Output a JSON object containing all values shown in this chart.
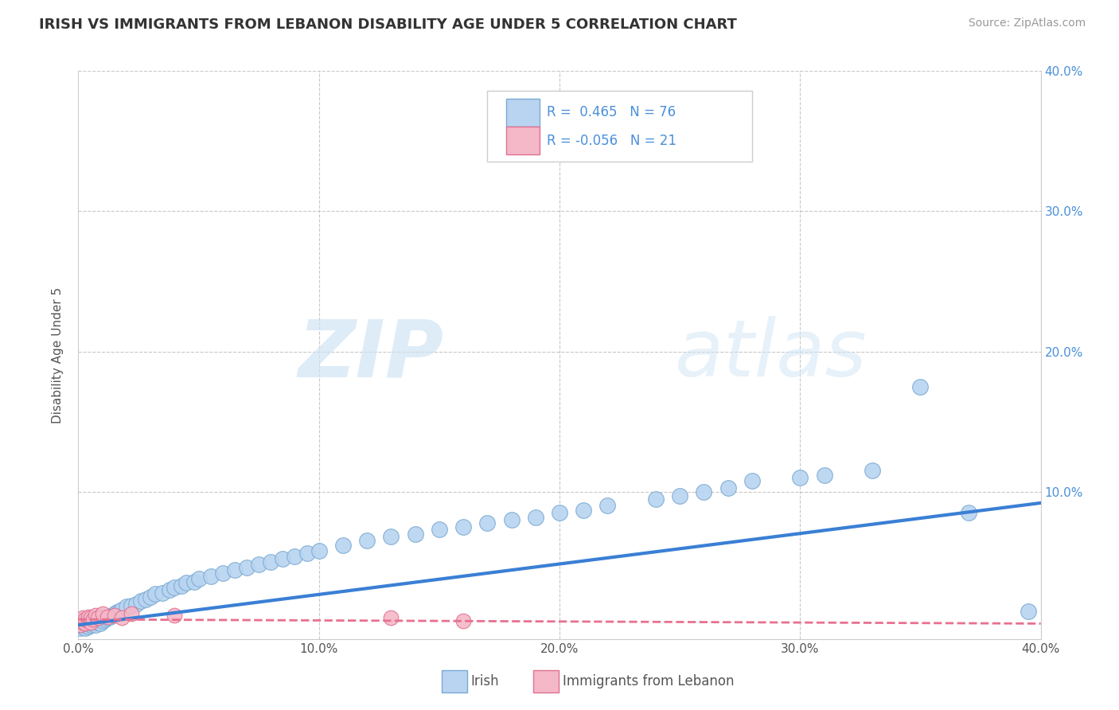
{
  "title": "IRISH VS IMMIGRANTS FROM LEBANON DISABILITY AGE UNDER 5 CORRELATION CHART",
  "source": "Source: ZipAtlas.com",
  "ylabel": "Disability Age Under 5",
  "xlim": [
    0.0,
    0.4
  ],
  "ylim": [
    -0.005,
    0.4
  ],
  "xticks": [
    0.0,
    0.1,
    0.2,
    0.3,
    0.4
  ],
  "yticks": [
    0.0,
    0.1,
    0.2,
    0.3,
    0.4
  ],
  "xtick_labels": [
    "0.0%",
    "10.0%",
    "20.0%",
    "30.0%",
    "40.0%"
  ],
  "ytick_labels": [
    "",
    "10.0%",
    "20.0%",
    "30.0%",
    "40.0%"
  ],
  "background_color": "#ffffff",
  "grid_color": "#c8c8c8",
  "irish_color": "#b8d4f0",
  "irish_edge_color": "#7aaad4",
  "lebanon_color": "#f4b8c8",
  "lebanon_edge_color": "#e07090",
  "irish_line_color": "#3a7fd5",
  "lebanon_line_color": "#e87090",
  "r_irish": 0.465,
  "n_irish": 76,
  "r_lebanon": -0.056,
  "n_lebanon": 21,
  "irish_x": [
    0.001,
    0.001,
    0.002,
    0.002,
    0.003,
    0.003,
    0.003,
    0.004,
    0.004,
    0.005,
    0.005,
    0.006,
    0.006,
    0.007,
    0.007,
    0.008,
    0.008,
    0.009,
    0.009,
    0.01,
    0.01,
    0.011,
    0.012,
    0.013,
    0.014,
    0.015,
    0.016,
    0.017,
    0.018,
    0.02,
    0.022,
    0.024,
    0.026,
    0.028,
    0.03,
    0.032,
    0.035,
    0.038,
    0.04,
    0.043,
    0.045,
    0.048,
    0.05,
    0.055,
    0.06,
    0.065,
    0.07,
    0.075,
    0.08,
    0.085,
    0.09,
    0.095,
    0.1,
    0.11,
    0.12,
    0.13,
    0.14,
    0.15,
    0.16,
    0.17,
    0.18,
    0.19,
    0.2,
    0.21,
    0.22,
    0.24,
    0.25,
    0.26,
    0.27,
    0.28,
    0.3,
    0.31,
    0.33,
    0.35,
    0.37,
    0.395
  ],
  "irish_y": [
    0.003,
    0.005,
    0.004,
    0.007,
    0.003,
    0.005,
    0.008,
    0.004,
    0.006,
    0.005,
    0.007,
    0.006,
    0.009,
    0.005,
    0.008,
    0.007,
    0.01,
    0.006,
    0.009,
    0.008,
    0.011,
    0.009,
    0.01,
    0.011,
    0.012,
    0.013,
    0.014,
    0.015,
    0.016,
    0.018,
    0.019,
    0.02,
    0.022,
    0.023,
    0.025,
    0.027,
    0.028,
    0.03,
    0.032,
    0.033,
    0.035,
    0.036,
    0.038,
    0.04,
    0.042,
    0.044,
    0.046,
    0.048,
    0.05,
    0.052,
    0.054,
    0.056,
    0.058,
    0.062,
    0.065,
    0.068,
    0.07,
    0.073,
    0.075,
    0.078,
    0.08,
    0.082,
    0.085,
    0.087,
    0.09,
    0.095,
    0.097,
    0.1,
    0.103,
    0.108,
    0.11,
    0.112,
    0.115,
    0.175,
    0.085,
    0.015
  ],
  "lebanon_x": [
    0.001,
    0.001,
    0.002,
    0.002,
    0.003,
    0.003,
    0.004,
    0.004,
    0.005,
    0.005,
    0.006,
    0.007,
    0.008,
    0.01,
    0.012,
    0.015,
    0.018,
    0.022,
    0.04,
    0.13,
    0.16
  ],
  "lebanon_y": [
    0.005,
    0.008,
    0.007,
    0.01,
    0.006,
    0.009,
    0.008,
    0.011,
    0.007,
    0.01,
    0.009,
    0.012,
    0.01,
    0.013,
    0.011,
    0.012,
    0.01,
    0.013,
    0.012,
    0.01,
    0.008
  ],
  "watermark_zip": "ZIP",
  "watermark_atlas": "atlas",
  "title_fontsize": 13,
  "axis_label_fontsize": 11,
  "tick_fontsize": 11,
  "legend_fontsize": 12,
  "source_fontsize": 10
}
